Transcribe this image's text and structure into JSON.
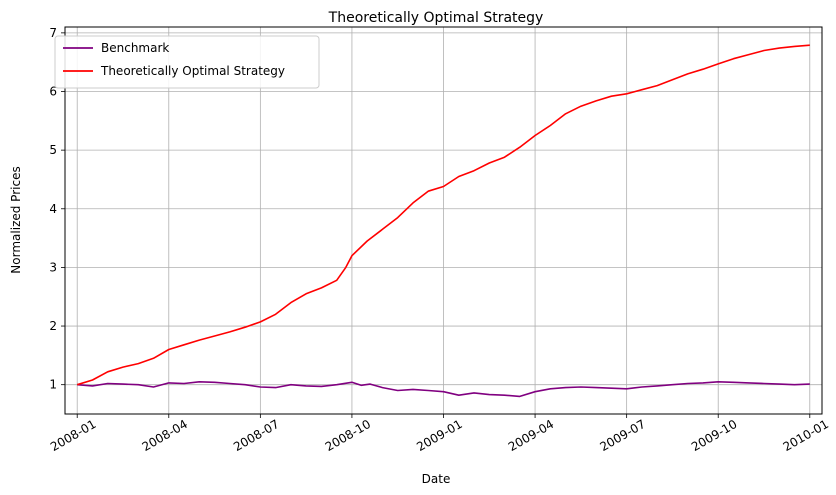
{
  "chart_data": {
    "type": "line",
    "title": "Theoretically Optimal Strategy",
    "xlabel": "Date",
    "ylabel": "Normalized Prices",
    "grid": true,
    "legend_position": "top-left",
    "x_range": [
      -0.4,
      24.4
    ],
    "ylim": [
      0.5,
      7.1
    ],
    "x_ticks": [
      {
        "value": 0,
        "label": "2008-01"
      },
      {
        "value": 3,
        "label": "2008-04"
      },
      {
        "value": 6,
        "label": "2008-07"
      },
      {
        "value": 9,
        "label": "2008-10"
      },
      {
        "value": 12,
        "label": "2009-01"
      },
      {
        "value": 15,
        "label": "2009-04"
      },
      {
        "value": 18,
        "label": "2009-07"
      },
      {
        "value": 21,
        "label": "2009-10"
      },
      {
        "value": 24,
        "label": "2010-01"
      }
    ],
    "y_ticks": [
      1,
      2,
      3,
      4,
      5,
      6,
      7
    ],
    "x_unit": "months since 2008-01",
    "series": [
      {
        "name": "Benchmark",
        "color": "#800080",
        "points": [
          [
            0,
            1.0
          ],
          [
            0.5,
            0.98
          ],
          [
            1,
            1.02
          ],
          [
            1.5,
            1.01
          ],
          [
            2,
            1.0
          ],
          [
            2.5,
            0.96
          ],
          [
            3,
            1.03
          ],
          [
            3.5,
            1.02
          ],
          [
            4,
            1.05
          ],
          [
            4.5,
            1.04
          ],
          [
            5,
            1.02
          ],
          [
            5.5,
            1.0
          ],
          [
            6,
            0.96
          ],
          [
            6.5,
            0.95
          ],
          [
            7,
            1.0
          ],
          [
            7.5,
            0.98
          ],
          [
            8,
            0.97
          ],
          [
            8.5,
            1.0
          ],
          [
            9,
            1.04
          ],
          [
            9.3,
            0.99
          ],
          [
            9.6,
            1.01
          ],
          [
            10,
            0.95
          ],
          [
            10.5,
            0.9
          ],
          [
            11,
            0.92
          ],
          [
            11.5,
            0.9
          ],
          [
            12,
            0.88
          ],
          [
            12.5,
            0.82
          ],
          [
            13,
            0.86
          ],
          [
            13.5,
            0.83
          ],
          [
            14,
            0.82
          ],
          [
            14.5,
            0.8
          ],
          [
            15,
            0.88
          ],
          [
            15.5,
            0.93
          ],
          [
            16,
            0.95
          ],
          [
            16.5,
            0.96
          ],
          [
            17,
            0.95
          ],
          [
            17.5,
            0.94
          ],
          [
            18,
            0.93
          ],
          [
            18.5,
            0.96
          ],
          [
            19,
            0.98
          ],
          [
            19.5,
            1.0
          ],
          [
            20,
            1.02
          ],
          [
            20.5,
            1.03
          ],
          [
            21,
            1.05
          ],
          [
            21.5,
            1.04
          ],
          [
            22,
            1.03
          ],
          [
            22.5,
            1.02
          ],
          [
            23,
            1.01
          ],
          [
            23.5,
            1.0
          ],
          [
            24,
            1.01
          ]
        ]
      },
      {
        "name": "Theoretically Optimal Strategy",
        "color": "#ff0000",
        "points": [
          [
            0,
            1.0
          ],
          [
            0.5,
            1.08
          ],
          [
            1,
            1.22
          ],
          [
            1.5,
            1.3
          ],
          [
            2,
            1.36
          ],
          [
            2.5,
            1.45
          ],
          [
            3,
            1.6
          ],
          [
            3.5,
            1.68
          ],
          [
            4,
            1.76
          ],
          [
            4.5,
            1.83
          ],
          [
            5,
            1.9
          ],
          [
            5.5,
            1.98
          ],
          [
            6,
            2.07
          ],
          [
            6.5,
            2.2
          ],
          [
            7,
            2.4
          ],
          [
            7.5,
            2.55
          ],
          [
            8,
            2.65
          ],
          [
            8.5,
            2.78
          ],
          [
            8.8,
            3.0
          ],
          [
            9,
            3.2
          ],
          [
            9.5,
            3.45
          ],
          [
            10,
            3.65
          ],
          [
            10.5,
            3.85
          ],
          [
            11,
            4.1
          ],
          [
            11.5,
            4.3
          ],
          [
            12,
            4.38
          ],
          [
            12.5,
            4.55
          ],
          [
            13,
            4.65
          ],
          [
            13.5,
            4.78
          ],
          [
            14,
            4.88
          ],
          [
            14.5,
            5.05
          ],
          [
            15,
            5.25
          ],
          [
            15.5,
            5.42
          ],
          [
            16,
            5.62
          ],
          [
            16.5,
            5.75
          ],
          [
            17,
            5.84
          ],
          [
            17.5,
            5.92
          ],
          [
            18,
            5.96
          ],
          [
            18.5,
            6.03
          ],
          [
            19,
            6.1
          ],
          [
            19.5,
            6.2
          ],
          [
            20,
            6.3
          ],
          [
            20.5,
            6.38
          ],
          [
            21,
            6.47
          ],
          [
            21.5,
            6.56
          ],
          [
            22,
            6.63
          ],
          [
            22.5,
            6.7
          ],
          [
            23,
            6.74
          ],
          [
            23.5,
            6.77
          ],
          [
            24,
            6.79
          ]
        ]
      }
    ]
  }
}
